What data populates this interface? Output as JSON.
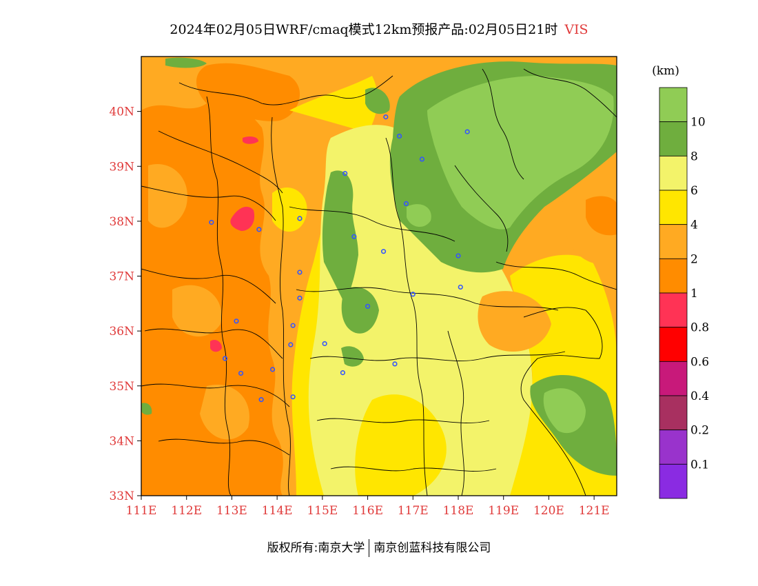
{
  "title": {
    "text": "2024年02月05日WRF/cmaq模式12km预报产品:02月05日21时",
    "variable": "VIS"
  },
  "map": {
    "lon_range": [
      111,
      121.5
    ],
    "lat_range": [
      33,
      41
    ],
    "lat_ticks": [
      "33N",
      "34N",
      "35N",
      "36N",
      "37N",
      "38N",
      "39N",
      "40N"
    ],
    "lat_values": [
      33,
      34,
      35,
      36,
      37,
      38,
      39,
      40
    ],
    "lon_ticks": [
      "111E",
      "112E",
      "113E",
      "114E",
      "115E",
      "116E",
      "117E",
      "118E",
      "119E",
      "120E",
      "121E"
    ],
    "lon_values": [
      111,
      112,
      113,
      114,
      115,
      116,
      117,
      118,
      119,
      120,
      121
    ],
    "colors": {
      "orange_1_2": "#ff8c00",
      "light_orange_2_4": "#ffaa22",
      "yellow_4_6": "#ffe600",
      "pale_yellow_6_8": "#f3f36a",
      "green_8_10": "#6fae3e",
      "light_green_10": "#90cc55",
      "red_0_8_1": "#ff3355",
      "city_marker": "#3355ff"
    },
    "cities": [
      {
        "lon": 116.4,
        "lat": 39.9
      },
      {
        "lon": 116.7,
        "lat": 39.55
      },
      {
        "lon": 117.2,
        "lat": 39.13
      },
      {
        "lon": 118.2,
        "lat": 39.63
      },
      {
        "lon": 115.5,
        "lat": 38.87
      },
      {
        "lon": 116.85,
        "lat": 38.32
      },
      {
        "lon": 114.5,
        "lat": 38.05
      },
      {
        "lon": 112.55,
        "lat": 37.98
      },
      {
        "lon": 113.6,
        "lat": 37.85
      },
      {
        "lon": 115.7,
        "lat": 37.72
      },
      {
        "lon": 116.35,
        "lat": 37.45
      },
      {
        "lon": 118.0,
        "lat": 37.37
      },
      {
        "lon": 114.5,
        "lat": 37.07
      },
      {
        "lon": 118.05,
        "lat": 36.8
      },
      {
        "lon": 117.0,
        "lat": 36.67
      },
      {
        "lon": 114.5,
        "lat": 36.6
      },
      {
        "lon": 116.0,
        "lat": 36.45
      },
      {
        "lon": 113.1,
        "lat": 36.18
      },
      {
        "lon": 114.35,
        "lat": 36.1
      },
      {
        "lon": 114.3,
        "lat": 35.75
      },
      {
        "lon": 115.05,
        "lat": 35.77
      },
      {
        "lon": 112.85,
        "lat": 35.5
      },
      {
        "lon": 116.6,
        "lat": 35.4
      },
      {
        "lon": 113.9,
        "lat": 35.3
      },
      {
        "lon": 113.2,
        "lat": 35.23
      },
      {
        "lon": 115.45,
        "lat": 35.24
      },
      {
        "lon": 114.35,
        "lat": 34.8
      },
      {
        "lon": 113.65,
        "lat": 34.75
      }
    ]
  },
  "colorbar": {
    "unit": "(km)",
    "labels": [
      "10",
      "8",
      "6",
      "4",
      "2",
      "1",
      "0.8",
      "0.6",
      "0.4",
      "0.2",
      "0.1"
    ],
    "colors": [
      "#90cc55",
      "#6fae3e",
      "#f3f36a",
      "#ffe600",
      "#ffaa22",
      "#ff8c00",
      "#ff3355",
      "#ff0000",
      "#c8197a",
      "#a83060",
      "#9933cc",
      "#8a2be2"
    ]
  },
  "footer": {
    "left": "版权所有:南京大学",
    "right": "南京创蓝科技有限公司"
  }
}
